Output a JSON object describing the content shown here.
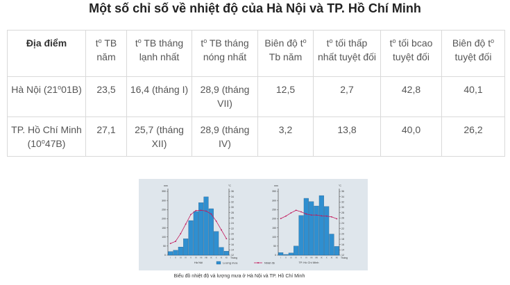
{
  "title": "Một số chỉ số về nhiệt độ của Hà Nội và TP. Hồ Chí Minh",
  "table": {
    "headers": [
      {
        "pre": "Địa điểm",
        "sup": "",
        "post": ""
      },
      {
        "pre": "t",
        "sup": "o",
        "post": " TB năm"
      },
      {
        "pre": "t",
        "sup": "o",
        "post": " TB tháng lạnh nhất"
      },
      {
        "pre": "t",
        "sup": "o",
        "post": " TB tháng nóng nhất"
      },
      {
        "pre": "Biên độ t",
        "sup": "o",
        "post": " Tb năm"
      },
      {
        "pre": "t",
        "sup": "o",
        "post": " tối thấp nhất tuyệt đối"
      },
      {
        "pre": "t",
        "sup": "o",
        "post": " tối bcao tuyệt đối"
      },
      {
        "pre": "Biên độ t",
        "sup": "o",
        "post": " tuyệt đối"
      }
    ],
    "rows": [
      {
        "place": {
          "pre": "Hà Nội (21",
          "sup": "o",
          "post": "01B)"
        },
        "cells": [
          "23,5",
          "16,4 (tháng I)",
          "28,9 (tháng VII)",
          "12,5",
          "2,7",
          "42,8",
          "40,1"
        ]
      },
      {
        "place": {
          "pre": "TP. Hồ Chí Minh (10",
          "sup": "o",
          "post": "47B)"
        },
        "cells": [
          "27,1",
          "25,7 (tháng XII)",
          "28,9 (tháng IV)",
          "3,2",
          "13,8",
          "40,0",
          "26,2"
        ]
      }
    ]
  },
  "figure": {
    "caption": "Biểu đồ nhiệt độ và lượng mưa ở Hà Nội và TP. Hồ Chí Minh",
    "legend": {
      "rain": "Lượng mưa",
      "temp": "Nhiệt độ"
    },
    "bar_color": "#2f8fd0",
    "line_color": "#c2185b",
    "axis_rain_unit": "mm",
    "axis_temp_unit": "°C",
    "x_axis_label": "Tháng"
  },
  "chart_data": [
    {
      "type": "bar",
      "title": "Hà Nội",
      "categories": [
        "1",
        "2",
        "3",
        "4",
        "5",
        "6",
        "7",
        "8",
        "9",
        "10",
        "11",
        "12"
      ],
      "ylim": [
        0,
        350
      ],
      "y2lim": [
        12,
        36
      ],
      "series": [
        {
          "name": "Lượng mưa",
          "values": [
            20,
            27,
            45,
            90,
            190,
            240,
            288,
            320,
            255,
            130,
            43,
            22
          ]
        },
        {
          "name": "Nhiệt độ",
          "values": [
            16.4,
            17.2,
            20.1,
            23.7,
            27.3,
            28.8,
            28.9,
            28.6,
            27.5,
            24.8,
            21.5,
            18.2
          ]
        }
      ],
      "yticks": [
        0,
        50,
        100,
        150,
        200,
        250,
        300,
        350
      ],
      "y2ticks": [
        12,
        14,
        16,
        18,
        20,
        22,
        24,
        26,
        28,
        30,
        32,
        34,
        36
      ]
    },
    {
      "type": "bar",
      "title": "TP. Hồ Chí Minh",
      "categories": [
        "1",
        "2",
        "3",
        "4",
        "5",
        "6",
        "7",
        "8",
        "9",
        "10",
        "11",
        "12"
      ],
      "ylim": [
        0,
        350
      ],
      "y2lim": [
        12,
        36
      ],
      "series": [
        {
          "name": "Lượng mưa",
          "values": [
            14,
            4,
            12,
            50,
            218,
            312,
            294,
            270,
            327,
            267,
            116,
            48
          ]
        },
        {
          "name": "Nhiệt độ",
          "values": [
            25.8,
            26.7,
            27.9,
            28.9,
            28.3,
            27.5,
            27.1,
            27.1,
            26.8,
            26.7,
            26.4,
            25.7
          ]
        }
      ],
      "yticks": [
        0,
        50,
        100,
        150,
        200,
        250,
        300,
        350
      ],
      "y2ticks": [
        12,
        14,
        16,
        18,
        20,
        22,
        24,
        26,
        28,
        30,
        32,
        34,
        36
      ]
    }
  ]
}
